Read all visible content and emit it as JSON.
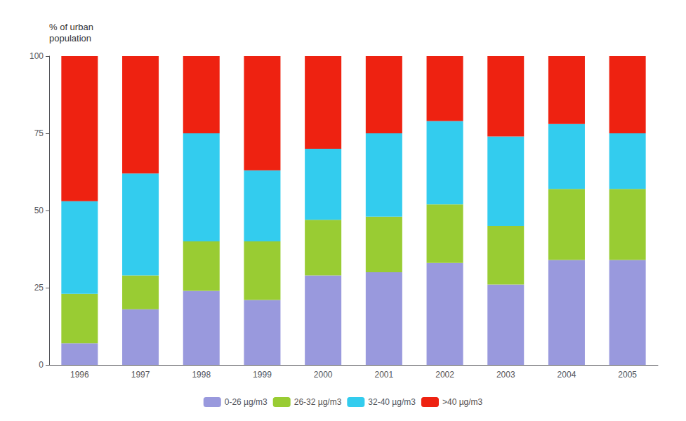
{
  "chart_data": {
    "type": "bar",
    "stacked": true,
    "ylabel": "% of urban\npopulation",
    "categories": [
      "1996",
      "1997",
      "1998",
      "1999",
      "2000",
      "2001",
      "2002",
      "2003",
      "2004",
      "2005"
    ],
    "series": [
      {
        "name": "0-26 µg/m3",
        "color": "#9999dd",
        "values": [
          7,
          18,
          24,
          21,
          29,
          30,
          33,
          26,
          34,
          34
        ]
      },
      {
        "name": "26-32 µg/m3",
        "color": "#99cc33",
        "values": [
          16,
          11,
          16,
          19,
          18,
          18,
          19,
          19,
          23,
          23
        ]
      },
      {
        "name": "32-40 µg/m3",
        "color": "#33ccee",
        "values": [
          30,
          33,
          35,
          23,
          23,
          27,
          27,
          29,
          21,
          18
        ]
      },
      {
        "name": ">40 µg/m3",
        "color": "#ee2211",
        "values": [
          47,
          38,
          25,
          37,
          30,
          25,
          21,
          26,
          22,
          25
        ]
      }
    ],
    "ylim": [
      0,
      100
    ],
    "yticks": [
      0,
      25,
      50,
      75,
      100
    ],
    "grid": false,
    "legend": "bottom"
  }
}
